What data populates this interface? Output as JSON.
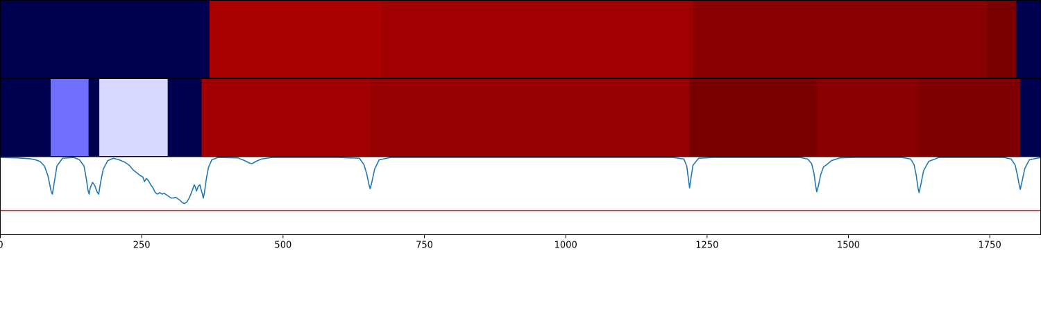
{
  "chart_data": [
    {
      "type": "heatmap",
      "panel": "top-strip",
      "x_range": [
        0,
        1840
      ],
      "segments": [
        {
          "x0": 0,
          "x1": 370,
          "color": "#000050"
        },
        {
          "x0": 370,
          "x1": 675,
          "color": "#aa0000"
        },
        {
          "x0": 675,
          "x1": 1225,
          "color": "#a00000"
        },
        {
          "x0": 1225,
          "x1": 1745,
          "color": "#8a0000"
        },
        {
          "x0": 1745,
          "x1": 1797,
          "color": "#7a0000"
        },
        {
          "x0": 1797,
          "x1": 1840,
          "color": "#000050"
        }
      ]
    },
    {
      "type": "heatmap",
      "panel": "middle-strip",
      "x_range": [
        0,
        1840
      ],
      "segments": [
        {
          "x0": 0,
          "x1": 89,
          "color": "#000050"
        },
        {
          "x0": 89,
          "x1": 156,
          "color": "#7070ff"
        },
        {
          "x0": 156,
          "x1": 175,
          "color": "#000050"
        },
        {
          "x0": 175,
          "x1": 296,
          "color": "#d8d8ff"
        },
        {
          "x0": 296,
          "x1": 356,
          "color": "#000050"
        },
        {
          "x0": 356,
          "x1": 654,
          "color": "#a00000"
        },
        {
          "x0": 654,
          "x1": 1219,
          "color": "#960000"
        },
        {
          "x0": 1219,
          "x1": 1444,
          "color": "#7a0000"
        },
        {
          "x0": 1444,
          "x1": 1625,
          "color": "#8a0000"
        },
        {
          "x0": 1625,
          "x1": 1804,
          "color": "#800000"
        },
        {
          "x0": 1804,
          "x1": 1840,
          "color": "#000050"
        }
      ]
    },
    {
      "type": "line",
      "panel": "bottom-plot",
      "xlim": [
        0,
        1840
      ],
      "ylim": [
        0,
        1
      ],
      "x_ticks": [
        0,
        250,
        500,
        750,
        1000,
        1250,
        1500,
        1750
      ],
      "series": [
        {
          "color": "#1f77b4",
          "points": [
            [
              0,
              0.99
            ],
            [
              30,
              0.985
            ],
            [
              50,
              0.975
            ],
            [
              60,
              0.965
            ],
            [
              70,
              0.94
            ],
            [
              78,
              0.88
            ],
            [
              84,
              0.76
            ],
            [
              88,
              0.62
            ],
            [
              90,
              0.55
            ],
            [
              92,
              0.52
            ],
            [
              95,
              0.65
            ],
            [
              100,
              0.88
            ],
            [
              110,
              0.98
            ],
            [
              130,
              0.99
            ],
            [
              140,
              0.96
            ],
            [
              148,
              0.88
            ],
            [
              152,
              0.72
            ],
            [
              155,
              0.57
            ],
            [
              157,
              0.52
            ],
            [
              159,
              0.6
            ],
            [
              163,
              0.67
            ],
            [
              167,
              0.63
            ],
            [
              171,
              0.55
            ],
            [
              174,
              0.52
            ],
            [
              177,
              0.66
            ],
            [
              182,
              0.84
            ],
            [
              190,
              0.95
            ],
            [
              200,
              0.98
            ],
            [
              210,
              0.96
            ],
            [
              220,
              0.93
            ],
            [
              228,
              0.89
            ],
            [
              235,
              0.83
            ],
            [
              242,
              0.79
            ],
            [
              247,
              0.76
            ],
            [
              252,
              0.74
            ],
            [
              255,
              0.68
            ],
            [
              258,
              0.72
            ],
            [
              260,
              0.71
            ],
            [
              263,
              0.68
            ],
            [
              266,
              0.64
            ],
            [
              270,
              0.6
            ],
            [
              274,
              0.54
            ],
            [
              278,
              0.52
            ],
            [
              282,
              0.54
            ],
            [
              286,
              0.52
            ],
            [
              290,
              0.53
            ],
            [
              294,
              0.51
            ],
            [
              298,
              0.49
            ],
            [
              302,
              0.47
            ],
            [
              306,
              0.47
            ],
            [
              310,
              0.48
            ],
            [
              314,
              0.46
            ],
            [
              318,
              0.44
            ],
            [
              322,
              0.41
            ],
            [
              326,
              0.4
            ],
            [
              330,
              0.42
            ],
            [
              334,
              0.47
            ],
            [
              337,
              0.52
            ],
            [
              340,
              0.58
            ],
            [
              343,
              0.64
            ],
            [
              345,
              0.61
            ],
            [
              347,
              0.56
            ],
            [
              350,
              0.62
            ],
            [
              353,
              0.64
            ],
            [
              355,
              0.58
            ],
            [
              357,
              0.53
            ],
            [
              359,
              0.47
            ],
            [
              361,
              0.54
            ],
            [
              364,
              0.7
            ],
            [
              368,
              0.86
            ],
            [
              374,
              0.96
            ],
            [
              385,
              0.99
            ],
            [
              420,
              0.985
            ],
            [
              432,
              0.95
            ],
            [
              440,
              0.92
            ],
            [
              445,
              0.91
            ],
            [
              452,
              0.94
            ],
            [
              462,
              0.97
            ],
            [
              480,
              0.99
            ],
            [
              600,
              0.99
            ],
            [
              635,
              0.98
            ],
            [
              643,
              0.9
            ],
            [
              648,
              0.78
            ],
            [
              652,
              0.64
            ],
            [
              654,
              0.59
            ],
            [
              657,
              0.67
            ],
            [
              662,
              0.84
            ],
            [
              670,
              0.96
            ],
            [
              690,
              0.99
            ],
            [
              1190,
              0.99
            ],
            [
              1209,
              0.97
            ],
            [
              1214,
              0.88
            ],
            [
              1217,
              0.72
            ],
            [
              1219,
              0.6
            ],
            [
              1221,
              0.7
            ],
            [
              1225,
              0.89
            ],
            [
              1235,
              0.98
            ],
            [
              1260,
              0.99
            ],
            [
              1415,
              0.99
            ],
            [
              1428,
              0.97
            ],
            [
              1435,
              0.91
            ],
            [
              1439,
              0.79
            ],
            [
              1442,
              0.63
            ],
            [
              1444,
              0.55
            ],
            [
              1447,
              0.63
            ],
            [
              1451,
              0.77
            ],
            [
              1456,
              0.87
            ],
            [
              1462,
              0.9
            ],
            [
              1470,
              0.95
            ],
            [
              1485,
              0.985
            ],
            [
              1510,
              0.99
            ],
            [
              1595,
              0.99
            ],
            [
              1610,
              0.97
            ],
            [
              1616,
              0.9
            ],
            [
              1620,
              0.76
            ],
            [
              1623,
              0.6
            ],
            [
              1625,
              0.54
            ],
            [
              1628,
              0.64
            ],
            [
              1633,
              0.82
            ],
            [
              1642,
              0.94
            ],
            [
              1660,
              0.99
            ],
            [
              1775,
              0.99
            ],
            [
              1788,
              0.97
            ],
            [
              1795,
              0.89
            ],
            [
              1799,
              0.76
            ],
            [
              1802,
              0.64
            ],
            [
              1804,
              0.58
            ],
            [
              1807,
              0.68
            ],
            [
              1812,
              0.85
            ],
            [
              1820,
              0.96
            ],
            [
              1840,
              0.99
            ]
          ]
        },
        {
          "color": "#e8251f",
          "points": [
            [
              0,
              0.31
            ],
            [
              1840,
              0.31
            ]
          ]
        }
      ]
    }
  ]
}
